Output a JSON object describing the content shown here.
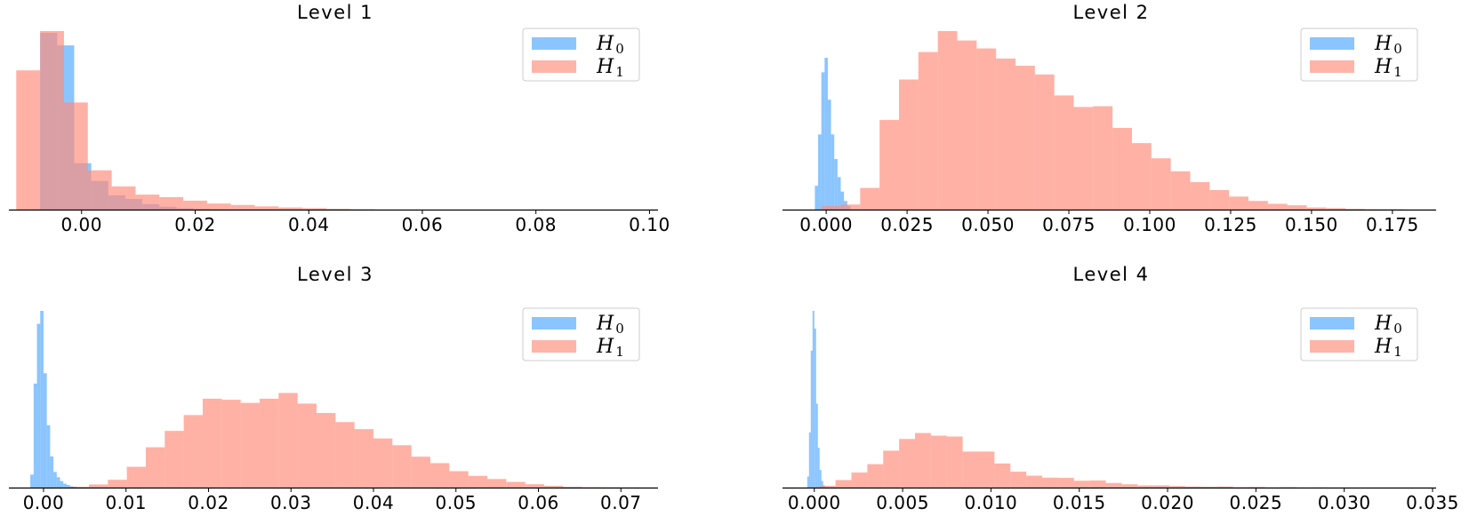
{
  "colors": {
    "h0": "#4da6ff",
    "h1": "#ff8c7a"
  },
  "legend": {
    "h0_base": "H",
    "h0_sub": "0",
    "h1_base": "H",
    "h1_sub": "1",
    "placement": "upper right"
  },
  "chart_data": [
    {
      "type": "histogram",
      "title": "Level 1",
      "xlabel": "",
      "ylabel": "",
      "xlim": [
        -0.0128,
        0.1015
      ],
      "xticks": [
        "0.00",
        "0.02",
        "0.04",
        "0.06",
        "0.08",
        "0.10"
      ],
      "xtick_values": [
        0.0,
        0.02,
        0.04,
        0.06,
        0.08,
        0.1
      ],
      "y_axis_visible": false,
      "series": [
        {
          "name": "H0",
          "color": "h0",
          "edges": [
            -0.0073,
            -0.0043,
            -0.0013,
            0.0017,
            0.0047,
            0.0077,
            0.0107,
            0.0137,
            0.0167,
            0.0197,
            0.0227
          ],
          "counts": [
            49.5,
            46,
            13,
            8,
            4,
            3,
            1.5,
            0.8,
            0.4,
            0.2
          ]
        },
        {
          "name": "H1",
          "color": "h1",
          "edges": [
            -0.0115,
            -0.0073,
            -0.0031,
            0.0011,
            0.0053,
            0.0095,
            0.0137,
            0.0179,
            0.0221,
            0.0263,
            0.0305,
            0.0347,
            0.0389,
            0.0431,
            0.0473,
            0.0515
          ],
          "counts": [
            39,
            50,
            30,
            11,
            6.5,
            4.2,
            3.5,
            2.5,
            1.7,
            1.3,
            0.9,
            0.6,
            0.4,
            0.2,
            0.1
          ]
        }
      ]
    },
    {
      "type": "histogram",
      "title": "Level 2",
      "xlabel": "",
      "ylabel": "",
      "xlim": [
        -0.0135,
        0.1885
      ],
      "xticks": [
        "0.000",
        "0.025",
        "0.050",
        "0.075",
        "0.100",
        "0.125",
        "0.150",
        "0.175"
      ],
      "xtick_values": [
        0.0,
        0.025,
        0.05,
        0.075,
        0.1,
        0.125,
        0.15,
        0.175
      ],
      "y_axis_visible": false,
      "series": [
        {
          "name": "H0",
          "color": "h0",
          "edges": [
            -0.0035,
            -0.0025,
            -0.0015,
            -0.0005,
            0.0005,
            0.0015,
            0.0025,
            0.0035,
            0.0045,
            0.0055,
            0.0065,
            0.0075
          ],
          "counts": [
            3.3,
            10.4,
            19,
            21,
            15.2,
            10.4,
            7,
            4.5,
            2.5,
            1.2,
            0.5
          ]
        },
        {
          "name": "H1",
          "color": "h1",
          "edges": [
            -0.0015,
            0.0045,
            0.0105,
            0.0165,
            0.0225,
            0.0285,
            0.0345,
            0.0405,
            0.0465,
            0.0525,
            0.0585,
            0.0645,
            0.0705,
            0.0765,
            0.0825,
            0.0885,
            0.0945,
            0.1005,
            0.1065,
            0.1125,
            0.1185,
            0.1245,
            0.1305,
            0.1365,
            0.1425,
            0.1485,
            0.1545,
            0.1605,
            0.1665,
            0.1725,
            0.1785
          ],
          "counts": [
            0.5,
            0.7,
            3,
            12.4,
            18,
            21.8,
            24.7,
            23.4,
            22.3,
            20.9,
            19.9,
            18.7,
            15.8,
            14.2,
            14.3,
            11.3,
            9.2,
            7.1,
            5.3,
            3.8,
            2.7,
            1.8,
            1.2,
            0.8,
            0.6,
            0.3,
            0.2,
            0.1,
            0.05,
            0.05
          ]
        }
      ]
    },
    {
      "type": "histogram",
      "title": "Level 3",
      "xlabel": "",
      "ylabel": "",
      "xlim": [
        -0.0042,
        0.0745
      ],
      "xticks": [
        "0.00",
        "0.01",
        "0.02",
        "0.03",
        "0.04",
        "0.05",
        "0.06",
        "0.07"
      ],
      "xtick_values": [
        0.0,
        0.01,
        0.02,
        0.03,
        0.04,
        0.05,
        0.06,
        0.07
      ],
      "y_axis_visible": false,
      "series": [
        {
          "name": "H0",
          "color": "h0",
          "edges": [
            -0.0016,
            -0.0012,
            -0.0008,
            -0.0004,
            0.0,
            0.0004,
            0.0008,
            0.0012,
            0.0016,
            0.002,
            0.0024,
            0.0028,
            0.0032,
            0.0036,
            0.004
          ],
          "counts": [
            5,
            40,
            63,
            68,
            44,
            24,
            12,
            6,
            4,
            2.5,
            1.5,
            1,
            0.5,
            0.3
          ]
        },
        {
          "name": "H1",
          "color": "h1",
          "edges": [
            0.0032,
            0.0055,
            0.0078,
            0.0101,
            0.0124,
            0.0147,
            0.017,
            0.0193,
            0.0216,
            0.0239,
            0.0262,
            0.0285,
            0.0308,
            0.0331,
            0.0354,
            0.0377,
            0.04,
            0.0423,
            0.0446,
            0.0469,
            0.0492,
            0.0515,
            0.0538,
            0.0561,
            0.0584,
            0.0607,
            0.063,
            0.0653,
            0.0676,
            0.0699,
            0.0722
          ],
          "counts": [
            0.3,
            1.2,
            3,
            8,
            15.5,
            21.8,
            27.9,
            34.2,
            33.8,
            32.6,
            34.2,
            36.4,
            32.3,
            28.7,
            25.2,
            22.5,
            18.9,
            16.3,
            11.9,
            9.4,
            6.3,
            4.5,
            3.3,
            2.2,
            1.3,
            0.7,
            0.3,
            0.15,
            0.1,
            0.05
          ]
        }
      ]
    },
    {
      "type": "histogram",
      "title": "Level 4",
      "xlabel": "",
      "ylabel": "",
      "xlim": [
        -0.0018,
        0.0352
      ],
      "xticks": [
        "0.000",
        "0.005",
        "0.010",
        "0.015",
        "0.020",
        "0.025",
        "0.030",
        "0.035"
      ],
      "xtick_values": [
        0.0,
        0.005,
        0.01,
        0.015,
        0.02,
        0.025,
        0.03,
        0.035
      ],
      "y_axis_visible": false,
      "series": [
        {
          "name": "H0",
          "color": "h0",
          "edges": [
            -0.0004,
            -0.0003,
            -0.0002,
            -0.0001,
            0.0,
            0.0001,
            0.0002,
            0.0003,
            0.0004,
            0.0005,
            0.0006
          ],
          "counts": [
            5,
            25,
            62,
            80,
            72,
            38,
            18,
            8,
            3,
            1
          ]
        },
        {
          "name": "H1",
          "color": "h1",
          "edges": [
            0.0003,
            0.0012,
            0.0021,
            0.003,
            0.0039,
            0.0048,
            0.0057,
            0.0066,
            0.0075,
            0.0084,
            0.0093,
            0.0102,
            0.0111,
            0.012,
            0.0129,
            0.0138,
            0.0147,
            0.0156,
            0.0165,
            0.0174,
            0.0183,
            0.0192,
            0.0201,
            0.021,
            0.0219,
            0.0228,
            0.0237,
            0.0246,
            0.0255,
            0.0264,
            0.0273,
            0.0282,
            0.0291
          ],
          "counts": [
            0.8,
            3.4,
            6.8,
            10.6,
            16.7,
            22,
            24.7,
            23.5,
            23.1,
            16.3,
            16.3,
            10.9,
            7.2,
            5.4,
            4.5,
            4.4,
            3.1,
            3.2,
            2.1,
            1.5,
            1.0,
            1.0,
            0.7,
            0.5,
            0.4,
            0.5,
            0.2,
            0.3,
            0.1,
            0.2,
            0.05,
            0.1
          ]
        }
      ]
    }
  ]
}
